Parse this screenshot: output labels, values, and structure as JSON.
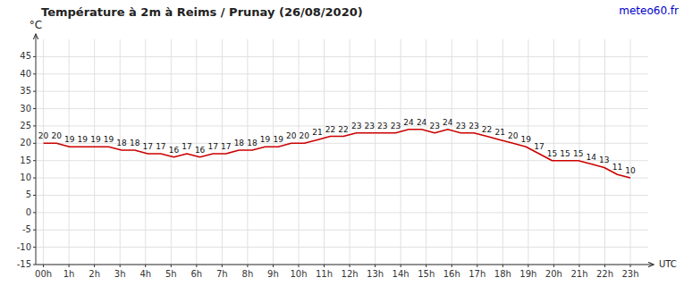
{
  "chart_data": {
    "type": "line",
    "title": "Température à 2m à Reims / Prunay (26/08/2020)",
    "y_label": "°C",
    "x_label": "UTC",
    "annotations": [
      {
        "text": "meteo60.fr",
        "color": "#0000cc"
      }
    ],
    "x": [
      0,
      0.511111,
      1.022222,
      1.533333,
      2.044444,
      2.555556,
      3.066667,
      3.577778,
      4.088889,
      4.6,
      5.111111,
      5.622222,
      6.133333,
      6.644444,
      7.155556,
      7.666667,
      8.177778,
      8.688889,
      9.2,
      9.711111,
      10.222222,
      10.733333,
      11.244444,
      11.755556,
      12.266667,
      12.777778,
      13.288889,
      13.8,
      14.311111,
      14.822222,
      15.333333,
      15.844444,
      16.355556,
      16.866667,
      17.377778,
      17.888889,
      18.4,
      18.911111,
      19.422222,
      19.933333,
      20.444444,
      20.955556,
      21.466667,
      21.977778,
      22.488889,
      23
    ],
    "values": [
      20,
      20,
      19,
      19,
      19,
      19,
      18,
      18,
      17,
      17,
      16,
      17,
      16,
      17,
      17,
      18,
      18,
      19,
      19,
      20,
      20,
      21,
      22,
      22,
      23,
      23,
      23,
      23,
      24,
      24,
      23,
      24,
      23,
      23,
      22,
      21,
      20,
      19,
      17,
      15,
      15,
      15,
      14,
      13,
      11,
      10
    ],
    "color": "#cc0000",
    "data_labels": true,
    "grid": true,
    "xlim": [
      -0.3,
      23.7
    ],
    "xticks": [
      {
        "value": 0,
        "label": "00h"
      },
      {
        "value": 1,
        "label": "1h"
      },
      {
        "value": 2,
        "label": "2h"
      },
      {
        "value": 3,
        "label": "3h"
      },
      {
        "value": 4,
        "label": "4h"
      },
      {
        "value": 5,
        "label": "5h"
      },
      {
        "value": 6,
        "label": "6h"
      },
      {
        "value": 7,
        "label": "7h"
      },
      {
        "value": 8,
        "label": "8h"
      },
      {
        "value": 9,
        "label": "9h"
      },
      {
        "value": 10,
        "label": "10h"
      },
      {
        "value": 11,
        "label": "11h"
      },
      {
        "value": 12,
        "label": "12h"
      },
      {
        "value": 13,
        "label": "13h"
      },
      {
        "value": 14,
        "label": "14h"
      },
      {
        "value": 15,
        "label": "15h"
      },
      {
        "value": 16,
        "label": "16h"
      },
      {
        "value": 17,
        "label": "17h"
      },
      {
        "value": 18,
        "label": "18h"
      },
      {
        "value": 19,
        "label": "19h"
      },
      {
        "value": 20,
        "label": "20h"
      },
      {
        "value": 21,
        "label": "21h"
      },
      {
        "value": 22,
        "label": "22h"
      },
      {
        "value": 23,
        "label": "23h"
      }
    ],
    "ylim": [
      -15,
      50
    ],
    "yticks": [
      -15,
      -10,
      -5,
      0,
      5,
      10,
      15,
      20,
      25,
      30,
      35,
      40,
      45
    ]
  }
}
